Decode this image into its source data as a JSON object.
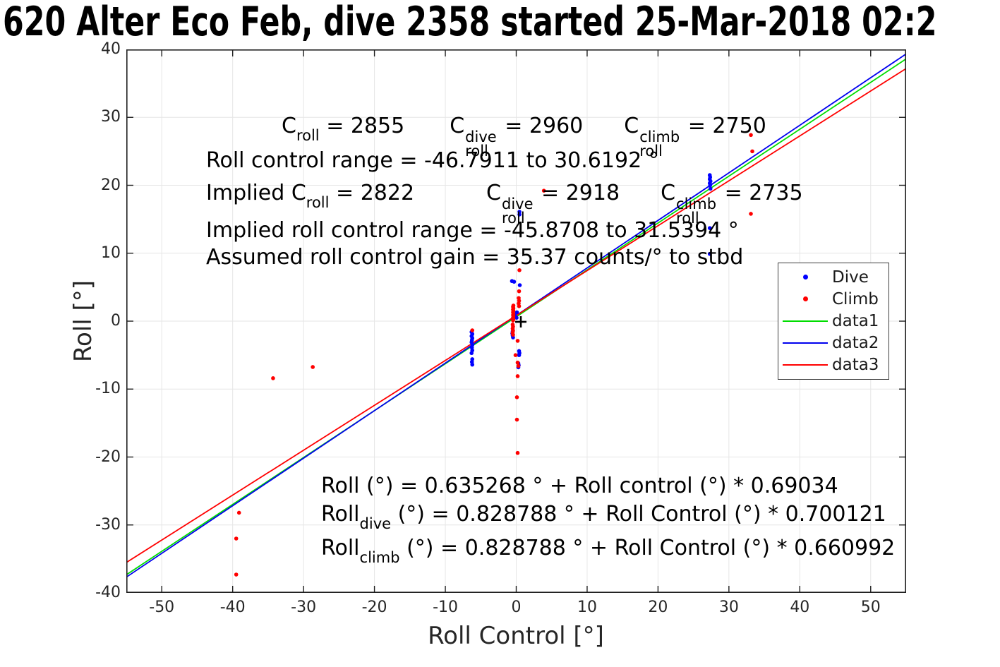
{
  "title": "620 Alter Eco Feb, dive 2358 started 25-Mar-2018 02:2",
  "annotations": {
    "cal": {
      "c1": "C",
      "c1_sub": "roll",
      "c1_val": " = 2855",
      "c2": "C",
      "c2_sup": "dive",
      "c2_sub": "roll",
      "c2_val": " = 2960",
      "c3": "C",
      "c3_sup": "climb",
      "c3_sub": "roll",
      "c3_val": " = 2750"
    },
    "control_range": "Roll control range = -46.7911 to 30.6192 °",
    "implied": {
      "prefix": "Implied C",
      "p_sub": "roll",
      "p_val": " = 2822",
      "c2": "C",
      "c2_sup": "dive",
      "c2_sub": "roll",
      "c2_val": " = 2918",
      "c3": "C",
      "c3_sup": "climb",
      "c3_sub": "roll",
      "c3_val": " = 2735"
    },
    "implied_range": "Implied roll control range = -45.8708 to 31.5394 °",
    "gain": "Assumed roll control gain = 35.37 counts/° to stbd",
    "eq1": "Roll (°) = 0.635268 ° + Roll control (°) * 0.69034",
    "eq2": {
      "base": "Roll",
      "sub": "dive",
      "rest": " (°) = 0.828788 ° + Roll Control (°) * 0.700121"
    },
    "eq3": {
      "base": "Roll",
      "sub": "climb",
      "rest": " (°) = 0.828788 ° + Roll Control (°) * 0.660992"
    }
  },
  "legend": {
    "items": [
      {
        "label": "Dive",
        "marker": "dot",
        "color": "#0000ff"
      },
      {
        "label": "Climb",
        "marker": "dot",
        "color": "#ff0000"
      },
      {
        "label": "data1",
        "marker": "line",
        "color": "#00dd00"
      },
      {
        "label": "data2",
        "marker": "line",
        "color": "#0000ee"
      },
      {
        "label": "data3",
        "marker": "line",
        "color": "#ff0000"
      }
    ]
  },
  "chart_data": {
    "type": "scatter",
    "title": "620 Alter Eco Feb, dive 2358 started 25-Mar-2018 02:2",
    "xlabel": "Roll Control [°]",
    "ylabel": "Roll [°]",
    "xlim": [
      -55,
      55
    ],
    "ylim": [
      -40,
      40
    ],
    "x_ticks": [
      -50,
      -40,
      -30,
      -20,
      -10,
      0,
      10,
      20,
      30,
      40,
      50
    ],
    "y_ticks": [
      -40,
      -30,
      -20,
      -10,
      0,
      10,
      20,
      30,
      40
    ],
    "grid": true,
    "legend_position": "right",
    "colors": {
      "grid": "#e6e6e6",
      "axis": "#1f1f1f"
    },
    "series": [
      {
        "name": "Dive",
        "type": "scatter",
        "color": "#0000ff",
        "points": [
          [
            -6.3,
            -1.6
          ],
          [
            -6.2,
            -1.9
          ],
          [
            -6.3,
            -2.2
          ],
          [
            -6.2,
            -2.5
          ],
          [
            -6.25,
            -2.8
          ],
          [
            -6.3,
            -3.1
          ],
          [
            -6.2,
            -3.5
          ],
          [
            -6.25,
            -3.9
          ],
          [
            -6.2,
            -4.3
          ],
          [
            -6.3,
            -4.7
          ],
          [
            -6.2,
            -5.6
          ],
          [
            -6.25,
            -6.0
          ],
          [
            -6.2,
            -6.4
          ],
          [
            -0.6,
            5.9
          ],
          [
            -0.3,
            5.8
          ],
          [
            0.5,
            5.3
          ],
          [
            0.45,
            16.1
          ],
          [
            0.45,
            15.7
          ],
          [
            0.1,
            1.3
          ],
          [
            -0.2,
            0.9
          ],
          [
            0.05,
            0.5
          ],
          [
            -0.5,
            -1.5
          ],
          [
            -0.55,
            -1.8
          ],
          [
            -0.5,
            -2.1
          ],
          [
            -0.45,
            -2.4
          ],
          [
            0.4,
            -4.4
          ],
          [
            0.45,
            -4.7
          ],
          [
            0.4,
            -5.0
          ],
          [
            0.3,
            -6.2
          ],
          [
            0.35,
            -6.5
          ],
          [
            0.3,
            -6.8
          ],
          [
            27.3,
            21.5
          ],
          [
            27.35,
            21.2
          ],
          [
            27.3,
            20.9
          ],
          [
            27.4,
            20.6
          ],
          [
            27.3,
            20.3
          ],
          [
            27.35,
            20.0
          ],
          [
            27.4,
            19.5
          ],
          [
            27.3,
            13.7
          ],
          [
            27.3,
            9.9
          ]
        ]
      },
      {
        "name": "Climb",
        "type": "scatter",
        "color": "#ff0000",
        "points": [
          [
            -39.5,
            -37.3
          ],
          [
            -39.5,
            -32.0
          ],
          [
            -39.1,
            -28.2
          ],
          [
            -34.3,
            -8.4
          ],
          [
            -28.7,
            -6.75
          ],
          [
            -6.2,
            -1.35
          ],
          [
            0.45,
            7.5
          ],
          [
            0.4,
            4.4
          ],
          [
            0.35,
            3.4
          ],
          [
            0.4,
            3.0
          ],
          [
            0.35,
            2.6
          ],
          [
            0.4,
            2.2
          ],
          [
            -0.4,
            2.3
          ],
          [
            -0.45,
            2.1
          ],
          [
            -0.4,
            1.9
          ],
          [
            -0.45,
            1.7
          ],
          [
            -0.4,
            1.5
          ],
          [
            -0.45,
            1.3
          ],
          [
            -0.4,
            1.1
          ],
          [
            -0.45,
            0.9
          ],
          [
            -0.4,
            0.7
          ],
          [
            -0.45,
            0.5
          ],
          [
            -0.4,
            0.3
          ],
          [
            -0.45,
            0.1
          ],
          [
            -0.5,
            -0.5
          ],
          [
            -0.45,
            -0.8
          ],
          [
            -0.5,
            -1.1
          ],
          [
            -0.45,
            -1.4
          ],
          [
            -0.5,
            -1.7
          ],
          [
            -0.45,
            -2.0
          ],
          [
            0.2,
            -2.9
          ],
          [
            -0.1,
            -5.0
          ],
          [
            0.2,
            -6.1
          ],
          [
            0.3,
            -6.6
          ],
          [
            0.2,
            -8.1
          ],
          [
            0.1,
            -11.2
          ],
          [
            0.1,
            -14.5
          ],
          [
            0.2,
            -19.4
          ],
          [
            3.9,
            19.2
          ],
          [
            33.1,
            27.4
          ],
          [
            33.3,
            25.0
          ],
          [
            33.1,
            15.8
          ]
        ]
      },
      {
        "name": "data1",
        "type": "line",
        "color": "#00dd00",
        "intercept": 0.635268,
        "slope": 0.69034
      },
      {
        "name": "data2",
        "type": "line",
        "color": "#0000ee",
        "intercept": 0.828788,
        "slope": 0.700121
      },
      {
        "name": "data3",
        "type": "line",
        "color": "#ff0000",
        "intercept": 0.828788,
        "slope": 0.660992
      }
    ],
    "origin_marker": {
      "shape": "plus",
      "color": "#000000",
      "x": 0.65,
      "y": -0.1
    }
  }
}
